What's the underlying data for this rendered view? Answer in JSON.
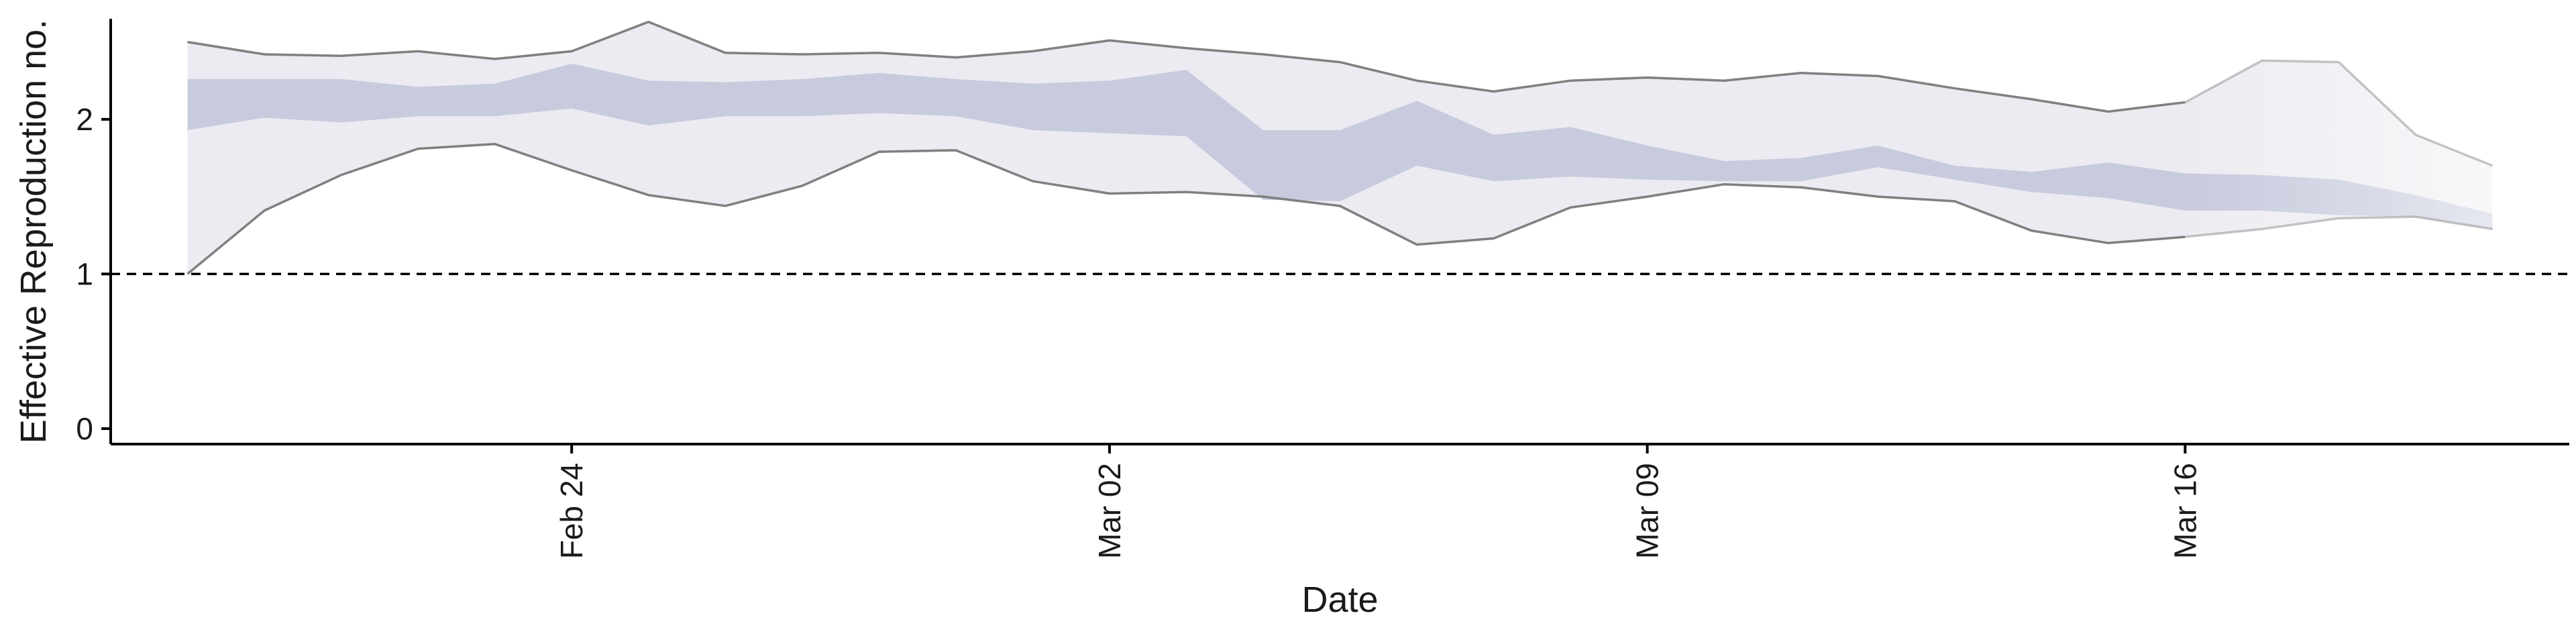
{
  "chart_data": {
    "type": "area",
    "xlabel": "Date",
    "ylabel": "Effective Reproduction no.",
    "x": [
      "2020-02-19",
      "2020-02-20",
      "2020-02-21",
      "2020-02-22",
      "2020-02-23",
      "2020-02-24",
      "2020-02-25",
      "2020-02-26",
      "2020-02-27",
      "2020-02-28",
      "2020-02-29",
      "2020-03-01",
      "2020-03-02",
      "2020-03-03",
      "2020-03-04",
      "2020-03-05",
      "2020-03-06",
      "2020-03-07",
      "2020-03-08",
      "2020-03-09",
      "2020-03-10",
      "2020-03-11",
      "2020-03-12",
      "2020-03-13",
      "2020-03-14",
      "2020-03-15",
      "2020-03-16",
      "2020-03-17",
      "2020-03-18",
      "2020-03-19",
      "2020-03-20"
    ],
    "x_ticks": [
      {
        "date": "2020-02-24",
        "label": "Feb 24"
      },
      {
        "date": "2020-03-02",
        "label": "Mar 02"
      },
      {
        "date": "2020-03-09",
        "label": "Mar 09"
      },
      {
        "date": "2020-03-16",
        "label": "Mar 16"
      }
    ],
    "y_ticks": [
      0,
      1,
      2
    ],
    "ylim": [
      -0.1,
      2.65
    ],
    "xlim": [
      "2020-02-18",
      "2020-03-21"
    ],
    "reference_line": {
      "y": 1,
      "style": "dashed"
    },
    "series": [
      {
        "type": "ribbon",
        "role": "outer",
        "upper": [
          2.5,
          2.42,
          2.41,
          2.44,
          2.39,
          2.44,
          2.63,
          2.43,
          2.42,
          2.43,
          2.4,
          2.44,
          2.51,
          2.46,
          2.42,
          2.37,
          2.25,
          2.18,
          2.25,
          2.27,
          2.25,
          2.3,
          2.28,
          2.2,
          2.13,
          2.05,
          2.11,
          2.38,
          2.37,
          1.9,
          1.7
        ],
        "lower": [
          1.0,
          1.41,
          1.64,
          1.81,
          1.84,
          1.67,
          1.51,
          1.44,
          1.57,
          1.79,
          1.8,
          1.6,
          1.52,
          1.53,
          1.5,
          1.44,
          1.19,
          1.23,
          1.43,
          1.5,
          1.58,
          1.56,
          1.5,
          1.47,
          1.28,
          1.2,
          1.24,
          1.29,
          1.36,
          1.37,
          1.29
        ]
      },
      {
        "type": "ribbon",
        "role": "inner",
        "upper": [
          2.26,
          2.26,
          2.26,
          2.21,
          2.23,
          2.36,
          2.25,
          2.24,
          2.26,
          2.3,
          2.26,
          2.23,
          2.25,
          2.32,
          1.93,
          1.93,
          2.12,
          1.9,
          1.95,
          1.83,
          1.73,
          1.75,
          1.83,
          1.7,
          1.66,
          1.72,
          1.65,
          1.64,
          1.61,
          1.51,
          1.39
        ]
      },
      {
        "type": "ribbon",
        "role": "inner-lower",
        "lower": [
          1.93,
          2.01,
          1.98,
          2.02,
          2.02,
          2.07,
          1.96,
          2.02,
          2.02,
          2.04,
          2.02,
          1.93,
          1.91,
          1.89,
          1.48,
          1.47,
          1.7,
          1.6,
          1.63,
          1.61,
          1.6,
          1.6,
          1.69,
          1.61,
          1.53,
          1.49,
          1.41,
          1.41,
          1.38,
          1.37,
          1.29
        ]
      }
    ],
    "forecast_start": "2020-03-16",
    "colors": {
      "outer_band": "#ebebf1",
      "inner_band": "#c7cbdd",
      "outline": "#808080",
      "axis": "#000000"
    }
  }
}
